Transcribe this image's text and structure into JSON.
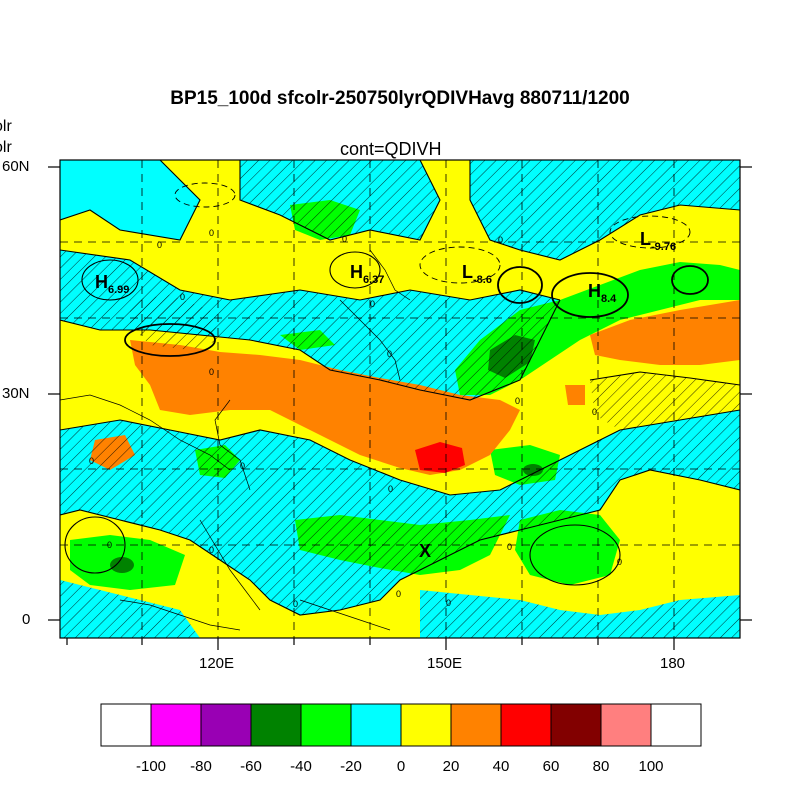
{
  "title": "BP15_100d sfcolr-250750lyrQDIVHavg  880711/1200",
  "subtitle": "cont=QDIVH",
  "left_clipped_labels": [
    "olr",
    "olr"
  ],
  "axes": {
    "y_ticks": [
      "60N",
      "30N",
      "0"
    ],
    "x_ticks": [
      "120E",
      "150E",
      "180"
    ]
  },
  "annotations": [
    {
      "letter": "H",
      "sub": "6.99"
    },
    {
      "letter": "H",
      "sub": "6.37"
    },
    {
      "letter": "L",
      "sub": "-8.6"
    },
    {
      "letter": "H",
      "sub": "8.4"
    },
    {
      "letter": "L",
      "sub": "-9.76"
    },
    {
      "letter": "X",
      "sub": ""
    }
  ],
  "contour_label": "0",
  "colorbar": {
    "labels": [
      "-100",
      "-80",
      "-60",
      "-40",
      "-20",
      "0",
      "20",
      "40",
      "60",
      "80",
      "100"
    ],
    "colors": [
      "#ffffff",
      "#ff00ff",
      "#9900b4",
      "#008200",
      "#00ff00",
      "#00ffff",
      "#ffff00",
      "#ff8200",
      "#ff0000",
      "#820000",
      "#ff7f7f",
      "#ffffff"
    ]
  }
}
